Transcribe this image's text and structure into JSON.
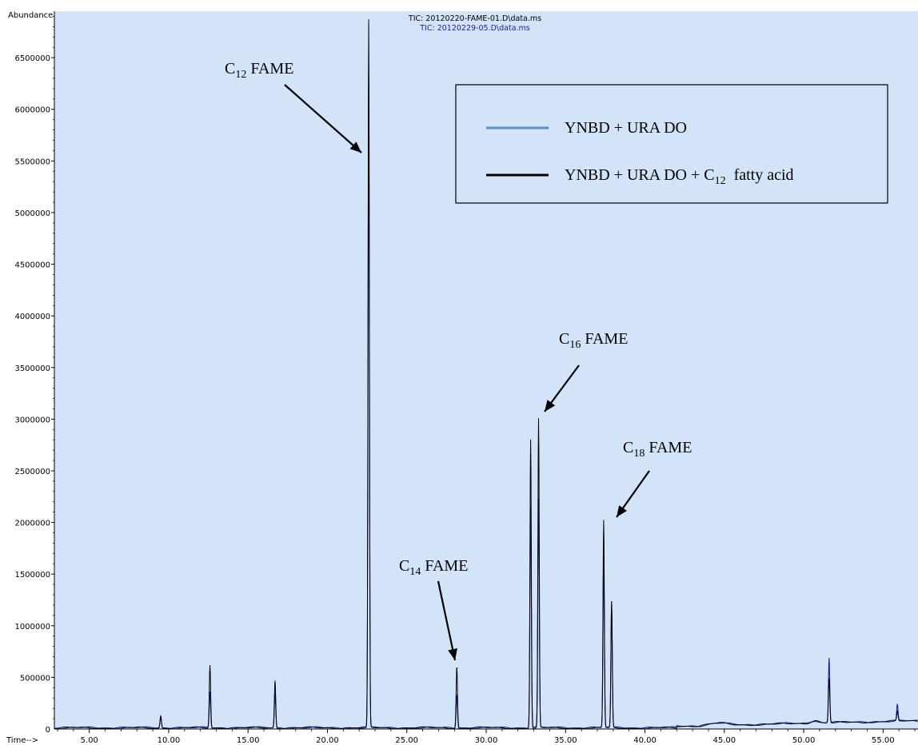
{
  "header": {
    "ylabel": "Abundance",
    "xlabel": "Time-->",
    "trace1": "TIC: 20120220-FAME-01.D\\data.ms",
    "trace2": "TIC: 20120229-05.D\\data.ms"
  },
  "colors": {
    "background": "#d4e4f8",
    "blue_trace": "#1a1fa8",
    "black_trace": "#000000",
    "legend_blue": "#5b8fd0",
    "trace2_header": "#1a1fa8"
  },
  "legend": [
    {
      "label": "YNBD + URA DO",
      "color": "#5b8fd0"
    },
    {
      "label": "YNBD + URA DO + C",
      "sub": "12",
      "suffix": "  fatty acid",
      "color": "#000000"
    }
  ],
  "annotations": [
    {
      "prefix": "C",
      "sub": "12",
      "suffix": " FAME",
      "peak_rt": 22.6,
      "peak_abundance": 5500000
    },
    {
      "prefix": "C",
      "sub": "14",
      "suffix": " FAME",
      "peak_rt": 28.15,
      "peak_abundance": 650000
    },
    {
      "prefix": "C",
      "sub": "16",
      "suffix": " FAME",
      "peak_rt": 33.3,
      "peak_abundance": 3080000
    },
    {
      "prefix": "C",
      "sub": "18",
      "suffix": " FAME",
      "peak_rt": 37.6,
      "peak_abundance": 2140000
    }
  ],
  "chart_data": {
    "type": "line",
    "xlabel": "Time-->",
    "ylabel": "Abundance",
    "xlim": [
      2.8,
      57.2
    ],
    "ylim": [
      0,
      6950000
    ],
    "x_ticks": [
      "5.00",
      "10.00",
      "15.00",
      "20.00",
      "25.00",
      "30.00",
      "35.00",
      "40.00",
      "45.00",
      "50.00",
      "55.00"
    ],
    "x_tick_values": [
      5,
      10,
      15,
      20,
      25,
      30,
      35,
      40,
      45,
      50,
      55
    ],
    "y_ticks": [
      "500000",
      "1000000",
      "1500000",
      "2000000",
      "2500000",
      "3000000",
      "3500000",
      "4000000",
      "4500000",
      "5000000",
      "5500000",
      "6000000",
      "6500000"
    ],
    "y_tick_values": [
      500000,
      1000000,
      1500000,
      2000000,
      2500000,
      3000000,
      3500000,
      4000000,
      4500000,
      5000000,
      5500000,
      6000000,
      6500000
    ],
    "zero_label": "0",
    "series": [
      {
        "name": "YNBD + URA DO",
        "color": "#1a1fa8",
        "width": 0.06,
        "peaks": [
          [
            9.5,
            110000
          ],
          [
            12.6,
            350000
          ],
          [
            16.7,
            330000
          ],
          [
            22.6,
            6250000
          ],
          [
            28.15,
            330000
          ],
          [
            32.8,
            2150000
          ],
          [
            33.3,
            2220000
          ],
          [
            37.4,
            1650000
          ],
          [
            37.9,
            1200000
          ],
          [
            51.6,
            630000
          ],
          [
            55.9,
            160000
          ]
        ]
      },
      {
        "name": "YNBD + URA DO + C12 fatty acid",
        "color": "#000000",
        "width": 0.06,
        "peaks": [
          [
            9.5,
            120000
          ],
          [
            12.6,
            610000
          ],
          [
            16.7,
            460000
          ],
          [
            22.6,
            6850000
          ],
          [
            28.15,
            600000
          ],
          [
            32.8,
            2790000
          ],
          [
            33.3,
            2990000
          ],
          [
            37.4,
            2010000
          ],
          [
            37.9,
            1220000
          ],
          [
            51.6,
            430000
          ],
          [
            55.9,
            90000
          ]
        ]
      }
    ]
  }
}
